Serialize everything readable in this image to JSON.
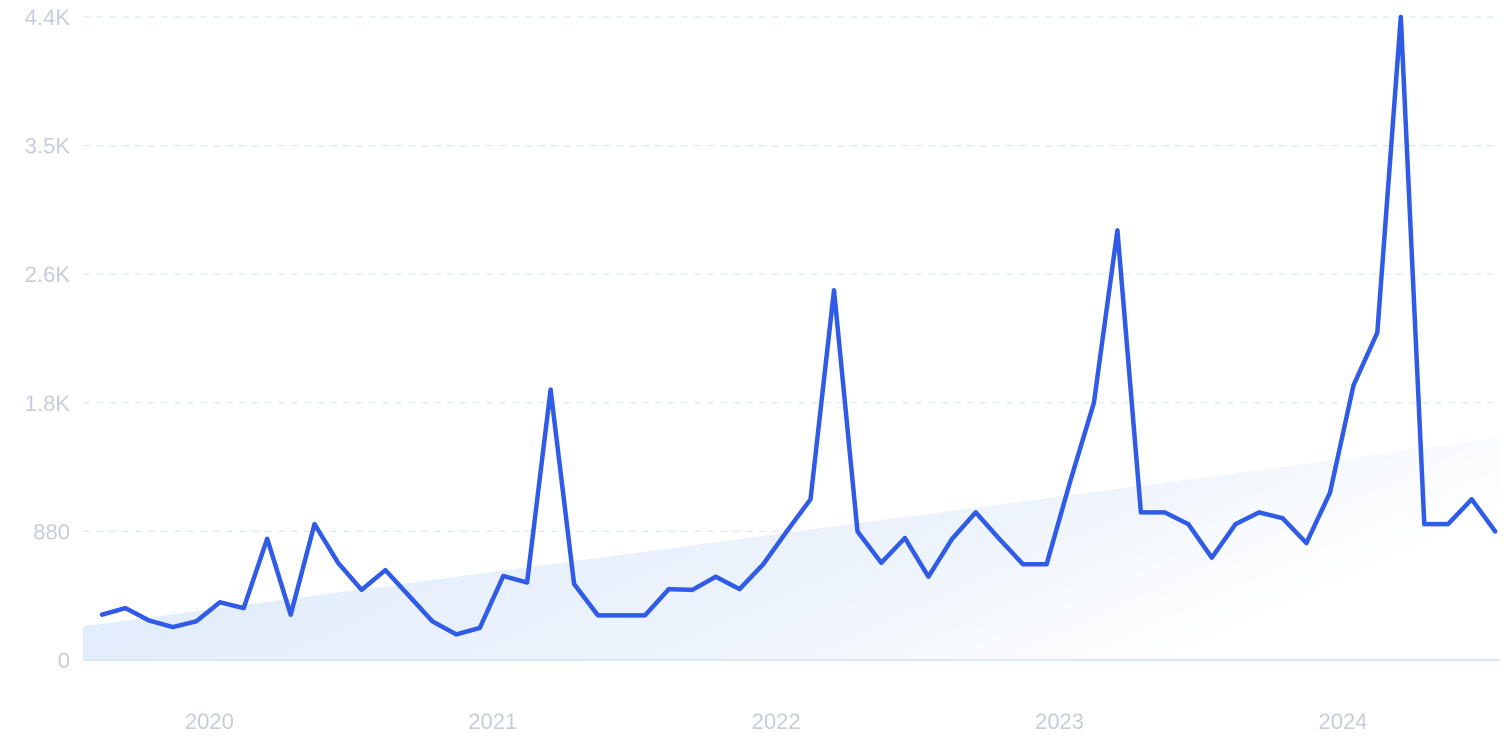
{
  "chart_data": {
    "type": "line",
    "title": "",
    "xlabel": "",
    "ylabel": "",
    "y_ticks": [
      {
        "value": 0,
        "label": "0"
      },
      {
        "value": 880,
        "label": "880"
      },
      {
        "value": 1760,
        "label": "1.8K"
      },
      {
        "value": 2640,
        "label": "2.6K"
      },
      {
        "value": 3520,
        "label": "3.5K"
      },
      {
        "value": 4400,
        "label": "4.4K"
      }
    ],
    "x_ticks": [
      {
        "value": 2020.0,
        "label": "2020"
      },
      {
        "value": 2021.0,
        "label": "2021"
      },
      {
        "value": 2022.0,
        "label": "2022"
      },
      {
        "value": 2023.0,
        "label": "2023"
      },
      {
        "value": 2024.0,
        "label": "2024"
      }
    ],
    "xlim": [
      2019.6,
      2024.6
    ],
    "ylim": [
      0,
      4400
    ],
    "grid": true,
    "trend_area": {
      "start": 230,
      "end": 1520
    },
    "colors": {
      "line": "#2f5be6",
      "grid": "#dce9f3",
      "tick_text": "#c9ccd8",
      "trend_fill_start": "#dce9fb",
      "trend_fill_end": "#ffffff"
    },
    "series": [
      {
        "x": [
          2019.667,
          2019.75,
          2019.833,
          2019.917,
          2020.0,
          2020.083,
          2020.167,
          2020.25,
          2020.333,
          2020.417,
          2020.5,
          2020.583,
          2020.667,
          2020.75,
          2020.833,
          2020.917,
          2021.0,
          2021.083,
          2021.167,
          2021.25,
          2021.333,
          2021.417,
          2021.5,
          2021.583,
          2021.667,
          2021.75,
          2021.833,
          2021.917,
          2022.0,
          2022.083,
          2022.167,
          2022.25,
          2022.333,
          2022.417,
          2022.5,
          2022.583,
          2022.667,
          2022.75,
          2022.833,
          2022.917,
          2023.0,
          2023.083,
          2023.167,
          2023.25,
          2023.333,
          2023.417,
          2023.5,
          2023.583,
          2023.667,
          2023.75,
          2023.833,
          2023.917,
          2024.0,
          2024.083,
          2024.167,
          2024.25,
          2024.333,
          2024.417,
          2024.5,
          2024.583
        ],
        "values": [
          310,
          355,
          270,
          225,
          265,
          395,
          355,
          830,
          310,
          930,
          665,
          480,
          615,
          440,
          265,
          175,
          220,
          575,
          530,
          1850,
          520,
          305,
          305,
          305,
          485,
          480,
          570,
          485,
          655,
          880,
          1100,
          2530,
          880,
          665,
          835,
          570,
          830,
          1010,
          830,
          655,
          655,
          1220,
          1760,
          2940,
          1010,
          1010,
          930,
          700,
          930,
          1010,
          970,
          800,
          1145,
          1880,
          2240,
          4400,
          930,
          930,
          1100,
          880
        ]
      }
    ]
  }
}
